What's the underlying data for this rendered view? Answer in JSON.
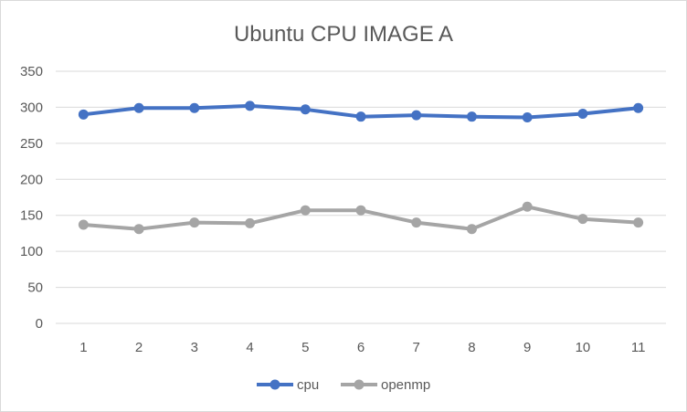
{
  "chart_data": {
    "type": "line",
    "title": "Ubuntu CPU IMAGE A",
    "xlabel": "",
    "ylabel": "",
    "x": [
      1,
      2,
      3,
      4,
      5,
      6,
      7,
      8,
      9,
      10,
      11
    ],
    "ylim": [
      0,
      350
    ],
    "yticks": [
      0,
      50,
      100,
      150,
      200,
      250,
      300,
      350
    ],
    "grid": true,
    "legend": "bottom",
    "series": [
      {
        "name": "cpu",
        "color": "#4472C4",
        "values": [
          290,
          299,
          299,
          302,
          297,
          287,
          289,
          287,
          286,
          291,
          299
        ]
      },
      {
        "name": "openmp",
        "color": "#A5A5A5",
        "values": [
          137,
          131,
          140,
          139,
          157,
          157,
          140,
          131,
          162,
          145,
          140
        ]
      }
    ]
  }
}
